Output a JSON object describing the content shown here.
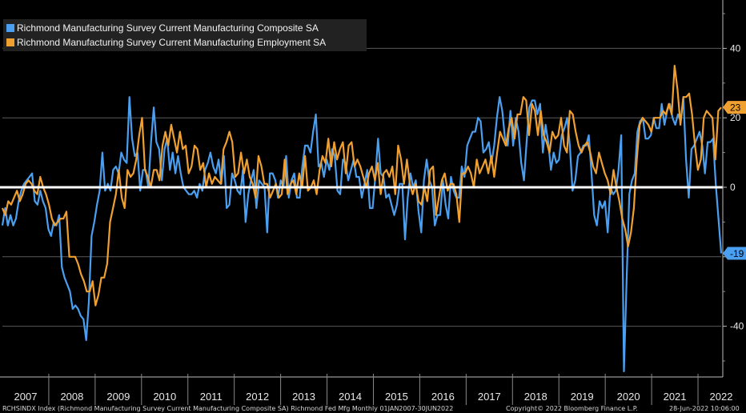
{
  "colors": {
    "composite": "#4a9ff0",
    "employment": "#f0a030",
    "zero_line": "#ffffff",
    "grid": "#5a5a5a"
  },
  "chart_data": {
    "type": "line",
    "title": "",
    "legend": [
      "Richmond Manufacturing Survey Current Manufacturing Composite SA",
      "Richmond Manufacturing Survey Current Manufacturing Employment SA"
    ],
    "legend_position": "top-left",
    "x_range": [
      2007.0,
      2022.5
    ],
    "x_tick_labels": [
      "2007",
      "2008",
      "2009",
      "2010",
      "2011",
      "2012",
      "2013",
      "2014",
      "2015",
      "2016",
      "2017",
      "2018",
      "2019",
      "2020",
      "2021",
      "2022"
    ],
    "ylim": [
      -54,
      54
    ],
    "y_ticks": [
      40,
      20,
      0,
      -20,
      -40
    ],
    "y_tick_labels": [
      "40",
      "20",
      "0",
      "",
      "-40"
    ],
    "last_value_labels": [
      {
        "series": "employment",
        "label": "23",
        "value": 23
      },
      {
        "series": "composite",
        "label": "-19",
        "value": -19
      }
    ],
    "series": [
      {
        "name": "Richmond Manufacturing Survey Current Manufacturing Composite SA",
        "key": "composite",
        "values": [
          -11,
          -6,
          -11,
          -8,
          -11,
          -9,
          -4,
          -1,
          1,
          2,
          3,
          4,
          -4,
          -5,
          -1,
          -4,
          -6,
          -12,
          -14,
          -10,
          -11,
          -8,
          -23,
          -26,
          -28,
          -30,
          -35,
          -34,
          -35,
          -37,
          -38,
          -44,
          -33,
          -14,
          -10,
          -5,
          -1,
          10,
          -1,
          1,
          -1,
          5,
          6,
          4,
          10,
          8,
          7,
          26,
          14,
          9,
          10,
          -1,
          5,
          5,
          0,
          13,
          23,
          13,
          11,
          2,
          11,
          14,
          5,
          10,
          4,
          9,
          4,
          0,
          -1,
          -2,
          -2,
          -1,
          -3,
          1,
          -1,
          5,
          7,
          10,
          6,
          4,
          8,
          1,
          9,
          -6,
          -5,
          4,
          2,
          -1,
          -2,
          5,
          -10,
          -2,
          2,
          5,
          -6,
          2,
          1,
          0,
          -13,
          4,
          4,
          2,
          -3,
          2,
          0,
          9,
          -3,
          2,
          4,
          -3,
          -3,
          6,
          12,
          12,
          10,
          16,
          21,
          6,
          7,
          3,
          8,
          5,
          11,
          9,
          -1,
          -2,
          8,
          7,
          2,
          5,
          8,
          3,
          3,
          -3,
          1,
          5,
          -6,
          -6,
          3,
          14,
          4,
          3,
          -3,
          -2,
          -5,
          -8,
          -5,
          1,
          1,
          -15,
          -3,
          4,
          0,
          2,
          -7,
          -13,
          2,
          8,
          2,
          0,
          -11,
          -8,
          -8,
          2,
          -5,
          -9,
          3,
          -1,
          -3,
          -3,
          6,
          3,
          12,
          14,
          16,
          16,
          20,
          19,
          10,
          11,
          13,
          7,
          12,
          20,
          26,
          22,
          14,
          12,
          22,
          12,
          20,
          16,
          7,
          2,
          13,
          23,
          25,
          25,
          21,
          24,
          10,
          18,
          13,
          5,
          10,
          7,
          8,
          15,
          17,
          20,
          12,
          -1,
          2,
          9,
          10,
          12,
          12,
          15,
          4,
          -8,
          -11,
          -4,
          -6,
          -4,
          -13,
          0,
          -2,
          -1,
          5,
          15,
          -53,
          -27,
          -2,
          2,
          4,
          16,
          19,
          20,
          14,
          14,
          15,
          20,
          17,
          17,
          24,
          18,
          22,
          24,
          20,
          18,
          21,
          19,
          26,
          8,
          -3,
          11,
          12,
          14,
          16,
          12,
          4,
          13,
          13,
          14,
          1,
          -9,
          -19
        ]
      },
      {
        "name": "Richmond Manufacturing Survey Current Manufacturing Employment SA",
        "key": "employment",
        "values": [
          -6,
          -8,
          -4,
          -5,
          -3,
          -1,
          -4,
          -2,
          1,
          2,
          1,
          -1,
          -2,
          3,
          0,
          -2,
          -5,
          -9,
          -11,
          -10,
          -9,
          -9,
          -7,
          -20,
          -20,
          -20,
          -22,
          -25,
          -27,
          -30,
          -30,
          -27,
          -34,
          -31,
          -26,
          -26,
          -22,
          -10,
          -6,
          -2,
          5,
          -3,
          -6,
          5,
          3,
          4,
          8,
          15,
          20,
          5,
          3,
          0,
          5,
          5,
          2,
          12,
          16,
          12,
          18,
          14,
          10,
          16,
          11,
          12,
          4,
          6,
          12,
          11,
          5,
          7,
          0,
          4,
          1,
          3,
          2,
          1,
          11,
          13,
          16,
          13,
          3,
          4,
          10,
          4,
          8,
          3,
          1,
          -3,
          9,
          6,
          1,
          1,
          -3,
          -1,
          1,
          -3,
          -2,
          8,
          -2,
          1,
          2,
          -2,
          4,
          0,
          9,
          -1,
          0,
          2,
          -2,
          5,
          9,
          7,
          14,
          6,
          13,
          8,
          11,
          13,
          4,
          12,
          13,
          6,
          8,
          6,
          3,
          0,
          4,
          6,
          2,
          7,
          -2,
          4,
          5,
          3,
          6,
          -2,
          12,
          8,
          1,
          8,
          1,
          -2,
          1,
          -4,
          -5,
          0,
          -4,
          5,
          6,
          -8,
          -3,
          2,
          4,
          -1,
          1,
          1,
          -2,
          -10,
          4,
          4,
          6,
          4,
          0,
          8,
          4,
          6,
          8,
          4,
          9,
          3,
          10,
          16,
          14,
          12,
          17,
          20,
          14,
          21,
          21,
          26,
          25,
          15,
          24,
          22,
          15,
          22,
          15,
          13,
          10,
          16,
          14,
          15,
          20,
          12,
          10,
          22,
          21,
          16,
          12,
          10,
          12,
          13,
          10,
          6,
          4,
          10,
          7,
          4,
          2,
          -2,
          5,
          0,
          -4,
          -9,
          -12,
          -17,
          -13,
          -6,
          8,
          18,
          20,
          19,
          18,
          16,
          20,
          20,
          20,
          22,
          21,
          24,
          21,
          35,
          28,
          18,
          26,
          26,
          27,
          21,
          12,
          5,
          8,
          20,
          22,
          21,
          20,
          8,
          22,
          23
        ]
      }
    ]
  },
  "footer": {
    "left": "RCHSINDX Index (Richmond Manufacturing Survey Current Manufacturing Composite SA) Richmond Fed Mfg  Monthly 01JAN2007-30JUN2022",
    "center": "Copyright© 2022 Bloomberg Finance L.P.",
    "right": "28-Jun-2022 10:06:00"
  }
}
